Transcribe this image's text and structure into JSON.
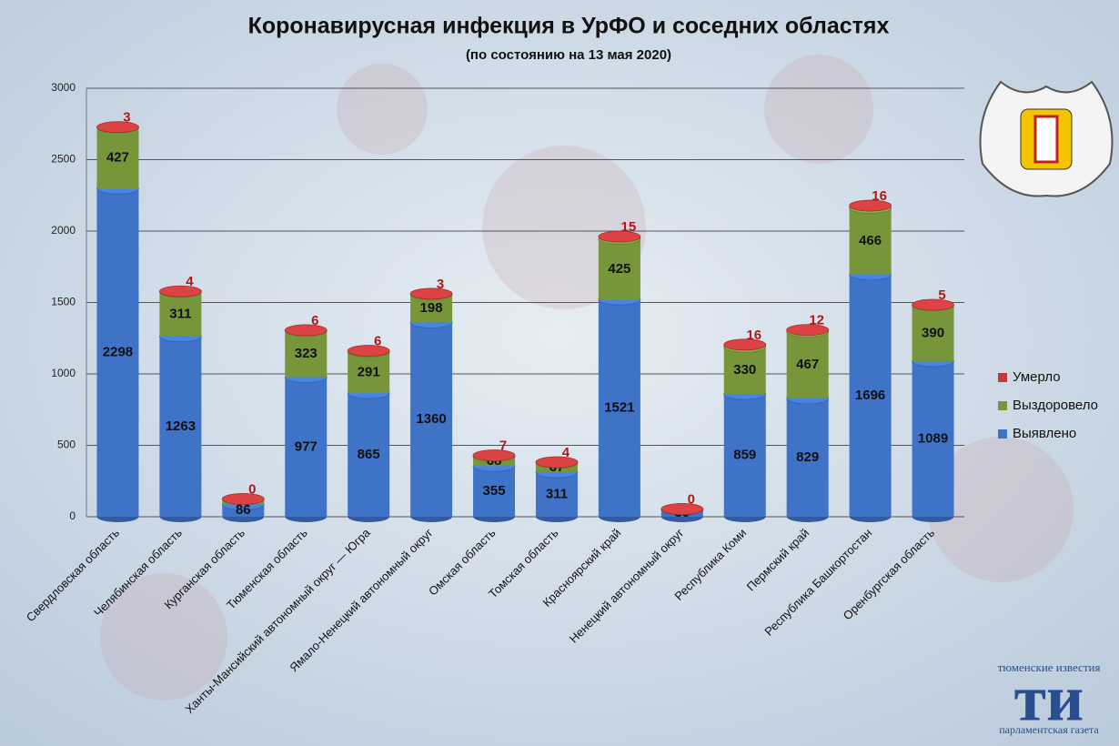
{
  "chart_data": {
    "type": "stacked-bar",
    "title": "Коронавирусная инфекция в УрФО и соседних областях",
    "subtitle": "(по состоянию на 13 мая 2020)",
    "categories": [
      "Свердловская область",
      "Челябинская область",
      "Курганская область",
      "Тюменская область",
      "Ханты-Мансийский автономный округ — Югра",
      "Ямало-Ненецкий автономный округ",
      "Омская область",
      "Томская область",
      "Красноярский край",
      "Ненецкий автономный округ",
      "Республика Коми",
      "Пермский край",
      "Республика Башкортостан",
      "Оренбургская область"
    ],
    "series": [
      {
        "name": "Выявлено",
        "color": "#3f73c8",
        "values": [
          2298,
          1263,
          86,
          977,
          865,
          1360,
          355,
          311,
          1521,
          50,
          859,
          829,
          1696,
          1089
        ]
      },
      {
        "name": "Выздоровело",
        "color": "#77963a",
        "values": [
          427,
          311,
          38,
          323,
          291,
          198,
          68,
          67,
          425,
          4,
          330,
          467,
          466,
          390
        ]
      },
      {
        "name": "Умерло",
        "color": "#c0393b",
        "values": [
          3,
          4,
          0,
          6,
          6,
          3,
          7,
          4,
          15,
          0,
          16,
          12,
          16,
          5
        ]
      }
    ],
    "ylim": [
      0,
      3000
    ],
    "yticks": [
      0,
      500,
      1000,
      1500,
      2000,
      2500,
      3000
    ],
    "grid": true
  },
  "logo": {
    "top": "тюменские известия",
    "mark": "ти",
    "bottom": "парламентская газета"
  }
}
